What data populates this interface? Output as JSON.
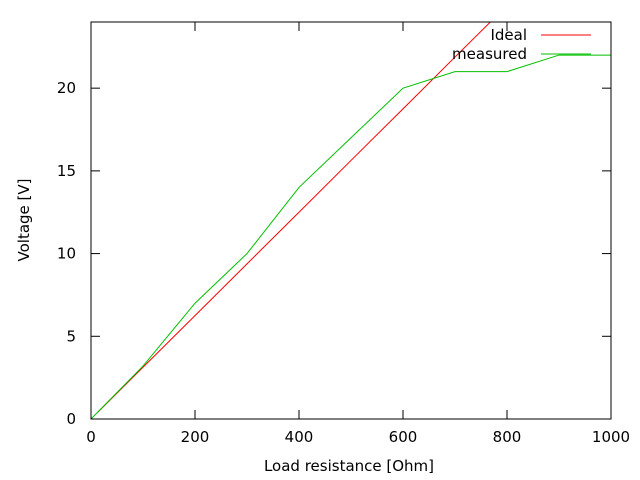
{
  "chart_data": {
    "type": "line",
    "title": "",
    "xlabel": "Load resistance [Ohm]",
    "ylabel": "Voltage [V]",
    "xlim": [
      0,
      1000
    ],
    "ylim": [
      0,
      24
    ],
    "xticks": [
      0,
      200,
      400,
      600,
      800,
      1000
    ],
    "yticks": [
      0,
      5,
      10,
      15,
      20
    ],
    "grid": false,
    "legend": "top-right",
    "series": [
      {
        "name": "Ideal",
        "color": "#ff0000",
        "x": [
          13,
          100,
          200,
          300,
          400,
          500,
          600,
          700,
          768
        ],
        "y": [
          0.41,
          3.13,
          6.25,
          9.38,
          12.5,
          15.63,
          18.75,
          21.88,
          24
        ]
      },
      {
        "name": "measured",
        "color": "#00c000",
        "x": [
          0,
          100,
          200,
          300,
          400,
          500,
          600,
          700,
          800,
          900,
          1000
        ],
        "y": [
          0,
          3.2,
          7,
          10,
          14,
          17,
          20,
          21,
          21,
          22,
          22
        ]
      }
    ]
  }
}
